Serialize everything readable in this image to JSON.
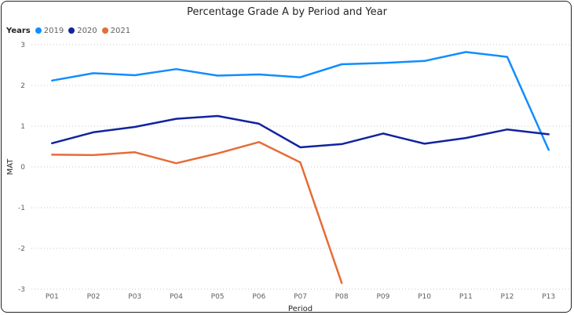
{
  "chart_data": {
    "type": "line",
    "title": "Percentage Grade A by Period and Year",
    "xlabel": "Period",
    "ylabel": "MAT",
    "legend_title": "Years",
    "legend_placement": "top-left",
    "categories": [
      "P01",
      "P02",
      "P03",
      "P04",
      "P05",
      "P06",
      "P07",
      "P08",
      "P09",
      "P10",
      "P11",
      "P12",
      "P13"
    ],
    "ylim": [
      -3,
      3
    ],
    "yticks": [
      3,
      2,
      1,
      0,
      -1,
      -2,
      -3
    ],
    "grid": true,
    "series": [
      {
        "name": "2019",
        "color": "#118DFF",
        "values": [
          2.12,
          2.3,
          2.25,
          2.4,
          2.24,
          2.27,
          2.2,
          2.52,
          2.55,
          2.6,
          2.82,
          2.7,
          0.42
        ]
      },
      {
        "name": "2020",
        "color": "#12239E",
        "values": [
          0.58,
          0.85,
          0.98,
          1.18,
          1.25,
          1.06,
          0.48,
          0.56,
          0.82,
          0.57,
          0.71,
          0.92,
          0.8
        ]
      },
      {
        "name": "2021",
        "color": "#E66C37",
        "values": [
          0.3,
          0.29,
          0.36,
          0.09,
          0.33,
          0.61,
          0.11,
          -2.85,
          null,
          null,
          null,
          null,
          null
        ]
      }
    ]
  }
}
